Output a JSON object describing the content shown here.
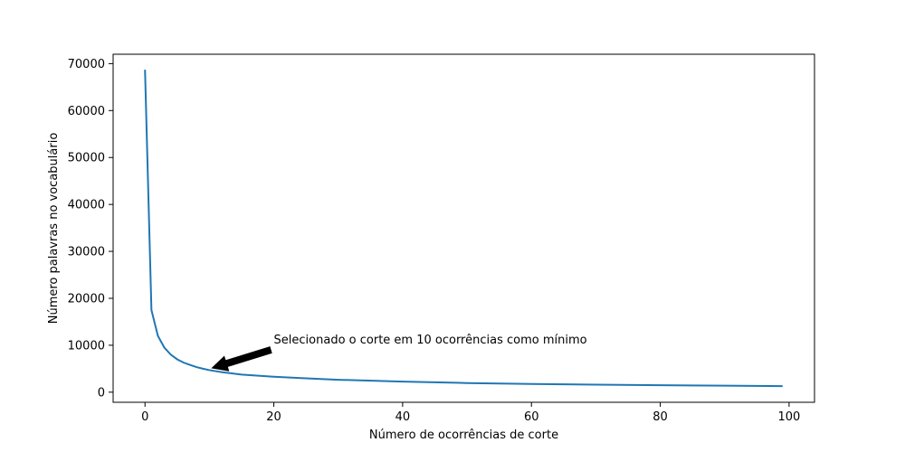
{
  "chart_data": {
    "type": "line",
    "title": "",
    "xlabel": "Número de ocorrências de corte",
    "ylabel": "Número palavras no vocabulário",
    "xlim": [
      -4.95,
      103.95
    ],
    "ylim": [
      -2150,
      72000
    ],
    "xticks": [
      0,
      20,
      40,
      60,
      80,
      100
    ],
    "yticks": [
      0,
      10000,
      20000,
      30000,
      40000,
      50000,
      60000,
      70000
    ],
    "grid": false,
    "legend": "none",
    "series": [
      {
        "color": "#1f77b4",
        "x": [
          0,
          1,
          2,
          3,
          4,
          5,
          6,
          7,
          8,
          9,
          10,
          12,
          15,
          20,
          25,
          30,
          40,
          50,
          60,
          70,
          80,
          90,
          99
        ],
        "y": [
          68700,
          17500,
          12000,
          9500,
          8000,
          7000,
          6300,
          5800,
          5350,
          5000,
          4700,
          4250,
          3750,
          3300,
          2950,
          2650,
          2250,
          1950,
          1750,
          1600,
          1480,
          1380,
          1300
        ]
      }
    ],
    "annotations": [
      {
        "text": "Selecionado o corte em 10 ocorrências como mínimo",
        "text_x": 20,
        "text_y": 10000,
        "arrow_to_x": 10,
        "arrow_to_y": 4700
      }
    ]
  }
}
